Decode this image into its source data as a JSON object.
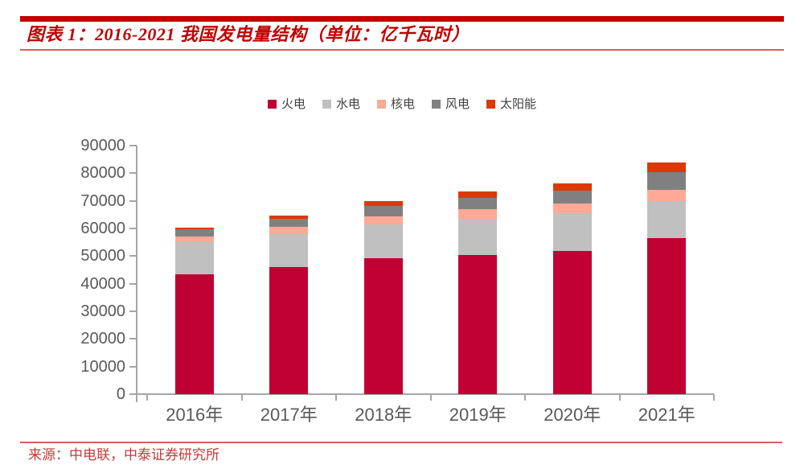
{
  "header": {
    "title": "图表 1：2016-2021 我国发电量结构（单位：亿千瓦时）"
  },
  "footer": {
    "source": "来源：中电联，中泰证券研究所"
  },
  "colors": {
    "accent_red": "#C00000",
    "rule_red": "#D65F5F",
    "source_text_red": "#C23B3B",
    "axis_line_gray": "#A6A6A6",
    "axis_text_gray": "#595959",
    "legend_text_gray": "#404040"
  },
  "chart_data": {
    "type": "bar",
    "stacked": true,
    "title": "2016-2021 我国发电量结构",
    "unit": "亿千瓦时",
    "xlabel": "",
    "ylabel": "",
    "ylim": [
      0,
      90000
    ],
    "ytick_step": 10000,
    "grid": false,
    "legend_position": "top",
    "categories": [
      "2016年",
      "2017年",
      "2018年",
      "2019年",
      "2020年",
      "2021年"
    ],
    "series": [
      {
        "name": "火电",
        "color": "#C00032",
        "values": [
          43300,
          46100,
          49200,
          50500,
          51800,
          56500
        ]
      },
      {
        "name": "水电",
        "color": "#C0C0C0",
        "values": [
          11800,
          11900,
          12300,
          13000,
          13600,
          13400
        ]
      },
      {
        "name": "核电",
        "color": "#FFA996",
        "values": [
          2100,
          2500,
          2900,
          3500,
          3700,
          4100
        ]
      },
      {
        "name": "风电",
        "color": "#808080",
        "values": [
          2400,
          3100,
          3700,
          4100,
          4700,
          6500
        ]
      },
      {
        "name": "太阳能",
        "color": "#DC3900",
        "values": [
          700,
          1200,
          1800,
          2200,
          2600,
          3300
        ]
      }
    ],
    "totals": [
      60300,
      64800,
      69900,
      73300,
      76400,
      83800
    ]
  }
}
